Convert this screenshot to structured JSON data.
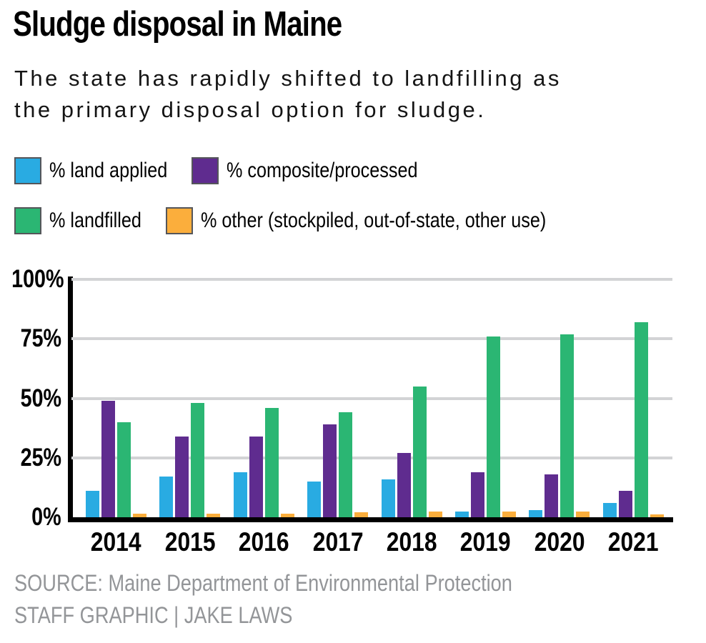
{
  "header": {
    "title": "Sludge disposal in Maine",
    "subtitle_lines": [
      "The state has rapidly shifted to landfilling as",
      "the primary disposal option for sludge."
    ]
  },
  "legend": {
    "rows": [
      [
        {
          "name": "land-applied",
          "label": "% land applied",
          "color": "#29ABE2"
        },
        {
          "name": "composite-processed",
          "label": "% composite/processed",
          "color": "#5F2C8F"
        }
      ],
      [
        {
          "name": "landfilled",
          "label": "% landfilled",
          "color": "#2BB673"
        },
        {
          "name": "other",
          "label": "% other (stockpiled, out-of-state, other use)",
          "color": "#FBAE3C"
        }
      ]
    ]
  },
  "chart_data": {
    "type": "bar",
    "title": "Sludge disposal in Maine",
    "categories": [
      "2014",
      "2015",
      "2016",
      "2017",
      "2018",
      "2019",
      "2020",
      "2021"
    ],
    "series": [
      {
        "name": "% land applied",
        "color": "#29ABE2",
        "values": [
          11,
          17,
          19,
          15,
          16,
          2.5,
          3,
          6
        ]
      },
      {
        "name": "% composite/processed",
        "color": "#5F2C8F",
        "values": [
          49,
          34,
          34,
          39,
          27,
          19,
          18,
          11
        ]
      },
      {
        "name": "% landfilled",
        "color": "#2BB673",
        "values": [
          40,
          48,
          46,
          44,
          55,
          76,
          77,
          82
        ]
      },
      {
        "name": "% other (stockpiled, out-of-state, other use)",
        "color": "#FBAE3C",
        "values": [
          1.5,
          1.5,
          1.5,
          2,
          2.5,
          2.5,
          2.5,
          1.2
        ]
      }
    ],
    "ylabel": "",
    "xlabel": "",
    "ylim": [
      0,
      100
    ],
    "y_ticks": [
      100,
      75,
      50,
      25,
      0
    ],
    "y_tick_labels": [
      "100%",
      "75%",
      "50%",
      "25%",
      "0%"
    ],
    "grid": true,
    "gridline_color": "#D2D3D5",
    "axis_color": "#000000",
    "legend_position": "top"
  },
  "footer": {
    "source": "SOURCE: Maine Department of Environmental Protection",
    "credit": "STAFF GRAPHIC | JAKE LAWS"
  }
}
